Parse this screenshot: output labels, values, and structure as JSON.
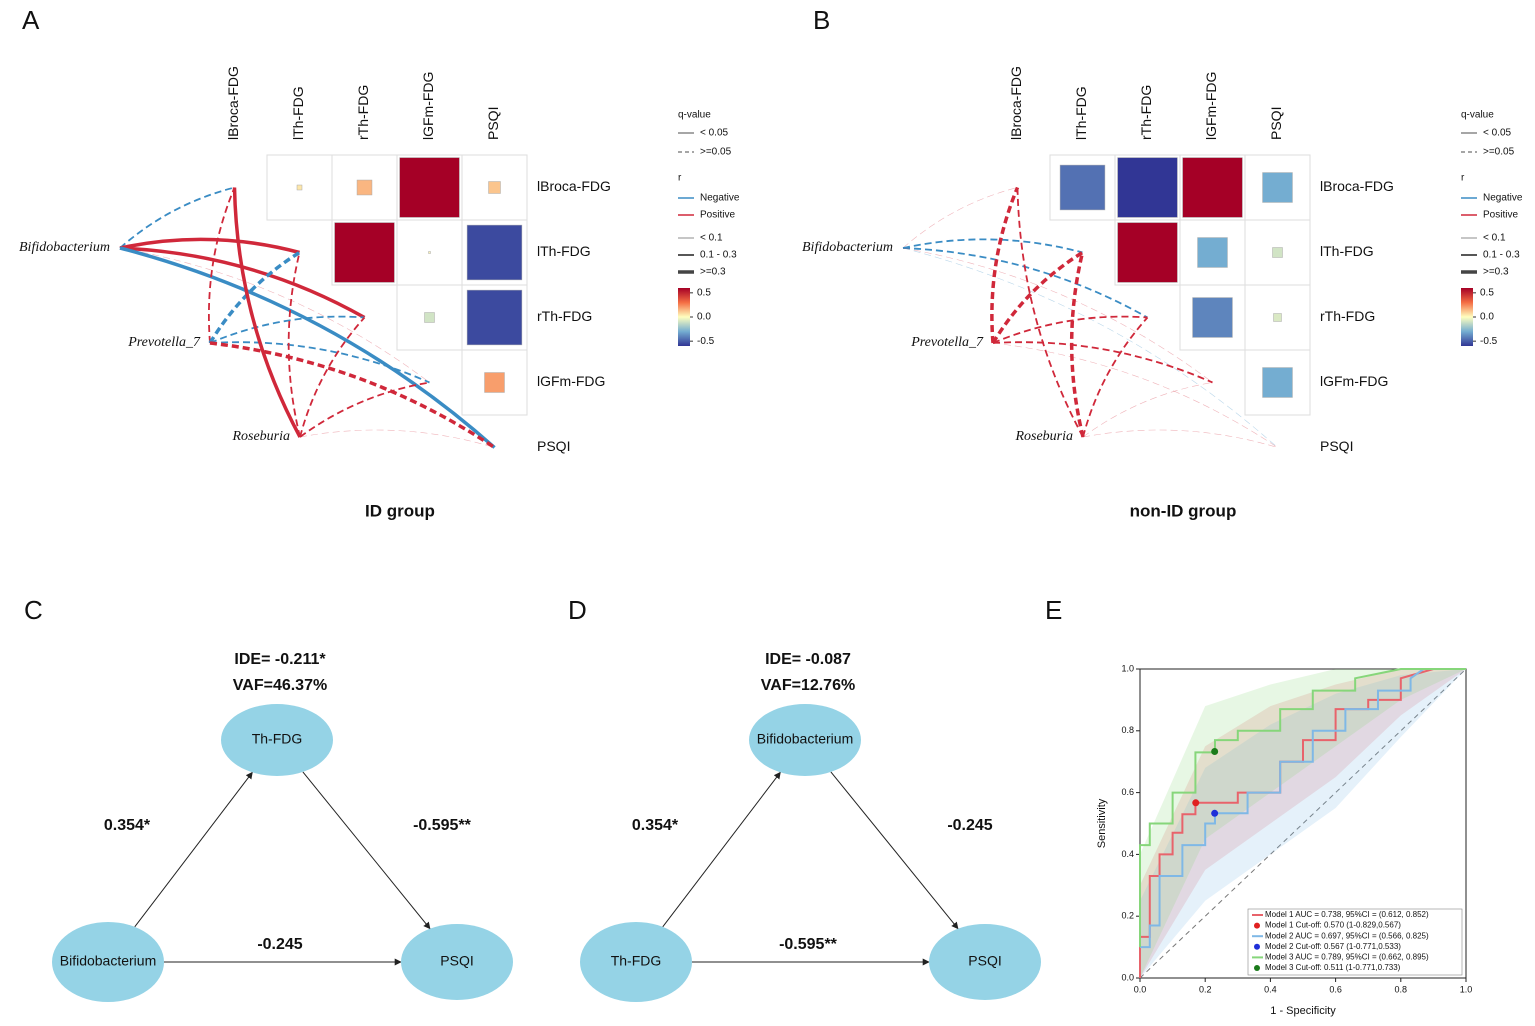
{
  "chart_data": [
    {
      "type": "heatmap",
      "panel": "A",
      "title": "ID group",
      "variables": [
        "lBroca-FDG",
        "lTh-FDG",
        "rTh-FDG",
        "lGFm-FDG",
        "PSQI"
      ],
      "values": [
        [
          null,
          0.05,
          0.15,
          0.6,
          0.12
        ],
        [
          null,
          null,
          0.6,
          0.02,
          -0.55
        ],
        [
          null,
          null,
          null,
          -0.1,
          -0.55
        ],
        [
          null,
          null,
          null,
          null,
          0.2
        ],
        [
          null,
          null,
          null,
          null,
          null
        ]
      ],
      "taxa": [
        "Bifidobacterium",
        "Prevotella_7",
        "Roseburia"
      ],
      "edges": [
        {
          "source": "Bifidobacterium",
          "target": "lBroca-FDG",
          "r": -0.15,
          "q": 0.2
        },
        {
          "source": "Bifidobacterium",
          "target": "lTh-FDG",
          "r": 0.35,
          "q": 0.01
        },
        {
          "source": "Bifidobacterium",
          "target": "rTh-FDG",
          "r": 0.32,
          "q": 0.02
        },
        {
          "source": "Bifidobacterium",
          "target": "lGFm-FDG",
          "r": 0.05,
          "q": 0.7
        },
        {
          "source": "Bifidobacterium",
          "target": "PSQI",
          "r": -0.4,
          "q": 0.001
        },
        {
          "source": "Prevotella_7",
          "target": "lBroca-FDG",
          "r": 0.2,
          "q": 0.2
        },
        {
          "source": "Prevotella_7",
          "target": "lTh-FDG",
          "r": -0.3,
          "q": 0.1
        },
        {
          "source": "Prevotella_7",
          "target": "rTh-FDG",
          "r": -0.15,
          "q": 0.3
        },
        {
          "source": "Prevotella_7",
          "target": "lGFm-FDG",
          "r": -0.15,
          "q": 0.3
        },
        {
          "source": "Prevotella_7",
          "target": "PSQI",
          "r": 0.3,
          "q": 0.08
        },
        {
          "source": "Roseburia",
          "target": "lBroca-FDG",
          "r": 0.35,
          "q": 0.01
        },
        {
          "source": "Roseburia",
          "target": "lTh-FDG",
          "r": 0.2,
          "q": 0.2
        },
        {
          "source": "Roseburia",
          "target": "rTh-FDG",
          "r": 0.2,
          "q": 0.2
        },
        {
          "source": "Roseburia",
          "target": "lGFm-FDG",
          "r": 0.15,
          "q": 0.3
        },
        {
          "source": "Roseburia",
          "target": "PSQI",
          "r": 0.05,
          "q": 0.8
        }
      ],
      "clim": [
        -0.6,
        0.6
      ],
      "colorscale": [
        "#313695",
        "#74add1",
        "#ffffbf",
        "#f46d43",
        "#a50026"
      ],
      "negative_color": "#3a8cc4",
      "positive_color": "#d0283a",
      "q_legend": {
        "title": "q-value",
        "threshold": 0.05,
        "items": [
          "< 0.05",
          ">=0.05"
        ]
      },
      "r_legend": {
        "title": "r",
        "items": [
          "Negative",
          "Positive"
        ]
      },
      "width_legend": [
        {
          "value": 0,
          "label": "< 0.1"
        },
        {
          "value": 0.1,
          "label": "0.1 - 0.3"
        },
        {
          "value": 0.3,
          "label": ">=0.3"
        }
      ],
      "cbar_ticks": [
        0.5,
        {
          "value": 0,
          "label": "0.0"
        },
        -0.5
      ]
    },
    {
      "type": "heatmap",
      "panel": "B",
      "title": "non-ID group",
      "variables": [
        "lBroca-FDG",
        "lTh-FDG",
        "rTh-FDG",
        "lGFm-FDG",
        "PSQI"
      ],
      "values": [
        [
          null,
          -0.45,
          -0.6,
          0.65,
          -0.3
        ],
        [
          null,
          null,
          0.65,
          -0.3,
          -0.1
        ],
        [
          null,
          null,
          null,
          -0.4,
          -0.08
        ],
        [
          null,
          null,
          null,
          null,
          -0.3
        ],
        [
          null,
          null,
          null,
          null,
          null
        ]
      ],
      "taxa": [
        "Bifidobacterium",
        "Prevotella_7",
        "Roseburia"
      ],
      "edges": [
        {
          "source": "Bifidobacterium",
          "target": "lBroca-FDG",
          "r": 0.05,
          "q": 0.8
        },
        {
          "source": "Bifidobacterium",
          "target": "lTh-FDG",
          "r": -0.15,
          "q": 0.3
        },
        {
          "source": "Bifidobacterium",
          "target": "rTh-FDG",
          "r": -0.15,
          "q": 0.3
        },
        {
          "source": "Bifidobacterium",
          "target": "lGFm-FDG",
          "r": 0.05,
          "q": 0.8
        },
        {
          "source": "Bifidobacterium",
          "target": "PSQI",
          "r": -0.05,
          "q": 0.8
        },
        {
          "source": "Prevotella_7",
          "target": "lBroca-FDG",
          "r": 0.3,
          "q": 0.06
        },
        {
          "source": "Prevotella_7",
          "target": "lTh-FDG",
          "r": 0.3,
          "q": 0.06
        },
        {
          "source": "Prevotella_7",
          "target": "rTh-FDG",
          "r": 0.2,
          "q": 0.2
        },
        {
          "source": "Prevotella_7",
          "target": "lGFm-FDG",
          "r": 0.15,
          "q": 0.3
        },
        {
          "source": "Prevotella_7",
          "target": "PSQI",
          "r": 0.05,
          "q": 0.8
        },
        {
          "source": "Roseburia",
          "target": "lBroca-FDG",
          "r": 0.25,
          "q": 0.15
        },
        {
          "source": "Roseburia",
          "target": "lTh-FDG",
          "r": 0.32,
          "q": 0.07
        },
        {
          "source": "Roseburia",
          "target": "rTh-FDG",
          "r": 0.2,
          "q": 0.2
        },
        {
          "source": "Roseburia",
          "target": "lGFm-FDG",
          "r": 0.05,
          "q": 0.8
        },
        {
          "source": "Roseburia",
          "target": "PSQI",
          "r": 0.05,
          "q": 0.8
        }
      ],
      "clim": [
        -0.6,
        0.6
      ],
      "colorscale": [
        "#313695",
        "#74add1",
        "#ffffbf",
        "#f46d43",
        "#a50026"
      ],
      "negative_color": "#3a8cc4",
      "positive_color": "#d0283a",
      "q_legend": {
        "title": "q-value",
        "threshold": 0.05,
        "items": [
          "< 0.05",
          ">=0.05"
        ]
      },
      "r_legend": {
        "title": "r",
        "items": [
          "Negative",
          "Positive"
        ]
      },
      "width_legend": [
        {
          "value": 0,
          "label": "< 0.1"
        },
        {
          "value": 0.1,
          "label": "0.1 - 0.3"
        },
        {
          "value": 0.3,
          "label": ">=0.3"
        }
      ],
      "cbar_ticks": [
        0.5,
        {
          "value": 0,
          "label": "0.0"
        },
        -0.5
      ]
    },
    {
      "type": "line",
      "panel": "E",
      "x_label": "1 - Specificity",
      "y_label": "Sensitivity",
      "xlim": [
        0,
        1
      ],
      "ylim": [
        0,
        1
      ],
      "xticks": [
        {
          "value": 0,
          "label": "0.0"
        },
        0.2,
        0.4,
        0.6,
        0.8,
        {
          "value": 1,
          "label": "1.0"
        }
      ],
      "yticks": [
        {
          "value": 0,
          "label": "0.0"
        },
        0.2,
        0.4,
        0.6,
        0.8,
        {
          "value": 1,
          "label": "1.0"
        }
      ],
      "series": [
        {
          "name": "Model 1 AUC = 0.738, 95%CI = (0.612, 0.852)",
          "color": "#e8636b",
          "x": [
            0,
            0,
            0.03,
            0.03,
            0.06,
            0.06,
            0.1,
            0.1,
            0.13,
            0.13,
            0.17,
            0.17,
            0.3,
            0.3,
            0.43,
            0.43,
            0.5,
            0.5,
            0.6,
            0.6,
            0.7,
            0.7,
            0.8,
            0.8,
            0.9,
            1.0
          ],
          "values": [
            0,
            0.133,
            0.133,
            0.33,
            0.33,
            0.4,
            0.4,
            0.47,
            0.47,
            0.53,
            0.53,
            0.567,
            0.567,
            0.6,
            0.6,
            0.7,
            0.7,
            0.77,
            0.77,
            0.87,
            0.87,
            0.9,
            0.9,
            0.97,
            1.0,
            1.0
          ],
          "ci_x": [
            0,
            0.2,
            0.4,
            0.6,
            0.8,
            1.0
          ],
          "ci_lower": [
            0,
            0.35,
            0.5,
            0.65,
            0.85,
            1
          ],
          "ci_upper": [
            0.3,
            0.75,
            0.88,
            0.95,
            1,
            1
          ]
        },
        {
          "name": "Model 2 AUC = 0.697, 95%CI = (0.566, 0.825)",
          "color": "#7fb8e6",
          "x": [
            0,
            0.03,
            0.03,
            0.06,
            0.06,
            0.13,
            0.13,
            0.2,
            0.2,
            0.23,
            0.23,
            0.33,
            0.33,
            0.43,
            0.43,
            0.53,
            0.53,
            0.63,
            0.63,
            0.73,
            0.73,
            0.83,
            0.83,
            0.87,
            1.0
          ],
          "values": [
            0.1,
            0.1,
            0.17,
            0.17,
            0.33,
            0.33,
            0.43,
            0.43,
            0.5,
            0.5,
            0.533,
            0.533,
            0.6,
            0.6,
            0.7,
            0.7,
            0.8,
            0.8,
            0.87,
            0.87,
            0.93,
            0.93,
            0.97,
            1.0,
            1.0
          ],
          "ci_x": [
            0,
            0.2,
            0.4,
            0.6,
            0.8,
            1.0
          ],
          "ci_lower": [
            0,
            0.25,
            0.4,
            0.55,
            0.78,
            1
          ],
          "ci_upper": [
            0.25,
            0.68,
            0.82,
            0.92,
            0.98,
            1
          ]
        },
        {
          "name": "Model 3 AUC = 0.789, 95%CI = (0.662, 0.895)",
          "color": "#86d67a",
          "x": [
            0,
            0,
            0.03,
            0.03,
            0.1,
            0.1,
            0.17,
            0.17,
            0.23,
            0.23,
            0.3,
            0.3,
            0.43,
            0.43,
            0.53,
            0.53,
            0.66,
            0.66,
            0.8,
            1.0
          ],
          "values": [
            0.1,
            0.43,
            0.43,
            0.5,
            0.5,
            0.6,
            0.6,
            0.73,
            0.73,
            0.77,
            0.77,
            0.8,
            0.8,
            0.87,
            0.87,
            0.93,
            0.93,
            0.97,
            1.0,
            1.0
          ],
          "ci_x": [
            0,
            0.2,
            0.4,
            0.6,
            0.8,
            1.0
          ],
          "ci_lower": [
            0,
            0.45,
            0.6,
            0.75,
            0.9,
            1
          ],
          "ci_upper": [
            0.4,
            0.88,
            0.95,
            1,
            1,
            1
          ]
        }
      ],
      "points": [
        {
          "name": "Model 1 Cut-off: 0.570 (1-0.829,0.567)",
          "color": "#e02020",
          "x": [
            0.171
          ],
          "values": [
            0.567
          ]
        },
        {
          "name": "Model 2 Cut-off: 0.567 (1-0.771,0.533)",
          "color": "#1f2fd8",
          "x": [
            0.229
          ],
          "values": [
            0.533
          ]
        },
        {
          "name": "Model 3 Cut-off: 0.511 (1-0.771,0.733)",
          "color": "#1a7a1a",
          "x": [
            0.229
          ],
          "values": [
            0.733
          ]
        }
      ]
    }
  ],
  "diagrams": [
    {
      "panel": "C",
      "stats": [
        "IDE= -0.211*",
        "VAF=46.37%"
      ],
      "nodes": [
        "Th-FDG",
        "Bifidobacterium",
        "PSQI"
      ],
      "edges": [
        {
          "from": 1,
          "to": 0,
          "label": "0.354*"
        },
        {
          "from": 0,
          "to": 2,
          "label": "-0.595**"
        },
        {
          "from": 1,
          "to": 2,
          "label": "-0.245"
        }
      ]
    },
    {
      "panel": "D",
      "stats": [
        "IDE= -0.087",
        "VAF=12.76%"
      ],
      "nodes": [
        "Bifidobacterium",
        "Th-FDG",
        "PSQI"
      ],
      "edges": [
        {
          "from": 1,
          "to": 0,
          "label": "0.354*"
        },
        {
          "from": 0,
          "to": 2,
          "label": "-0.245"
        },
        {
          "from": 1,
          "to": 2,
          "label": "-0.595**"
        }
      ]
    }
  ]
}
